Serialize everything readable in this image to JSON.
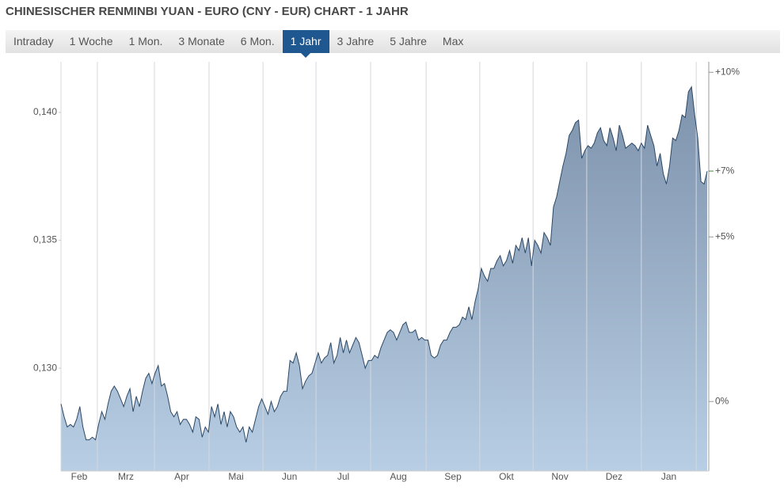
{
  "chart_data": {
    "type": "area",
    "title": "CHINESISCHER RENMINBI YUAN - EURO (CNY - EUR) CHART - 1 JAHR",
    "categories": [
      "Feb",
      "Mrz",
      "Apr",
      "Mai",
      "Jun",
      "Jul",
      "Aug",
      "Sep",
      "Okt",
      "Nov",
      "Dez",
      "Jan"
    ],
    "xticks": [
      0,
      11.6,
      29.8,
      47.2,
      64.4,
      81.3,
      98.7,
      116.4,
      133.5,
      150.5,
      167.6,
      185.0,
      202.5
    ],
    "xlim": [
      0,
      206.5
    ],
    "x": [
      0,
      1,
      2,
      3,
      4,
      5,
      6,
      7,
      8,
      9,
      10,
      11,
      12,
      13,
      14,
      15,
      16,
      17,
      18,
      19,
      20,
      21,
      22,
      23,
      24,
      25,
      26,
      27,
      28,
      29,
      30,
      31,
      32,
      33,
      34,
      35,
      36,
      37,
      38,
      39,
      40,
      41,
      42,
      43,
      44,
      45,
      46,
      47,
      48,
      49,
      50,
      51,
      52,
      53,
      54,
      55,
      56,
      57,
      58,
      59,
      60,
      61,
      62,
      63,
      64,
      65,
      66,
      67,
      68,
      69,
      70,
      71,
      72,
      73,
      74,
      75,
      76,
      77,
      78,
      79,
      80,
      81,
      82,
      83,
      84,
      85,
      86,
      87,
      88,
      89,
      90,
      91,
      92,
      93,
      94,
      95,
      96,
      97,
      98,
      99,
      100,
      101,
      102,
      103,
      104,
      105,
      106,
      107,
      108,
      109,
      110,
      111,
      112,
      113,
      114,
      115,
      116,
      117,
      118,
      119,
      120,
      121,
      122,
      123,
      124,
      125,
      126,
      127,
      128,
      129,
      130,
      131,
      132,
      133,
      134,
      135,
      136,
      137,
      138,
      139,
      140,
      141,
      142,
      143,
      144,
      145,
      146,
      147,
      148,
      149,
      150,
      151,
      152,
      153,
      154,
      155,
      156,
      157,
      158,
      159,
      160,
      161,
      162,
      163,
      164,
      165,
      166,
      167,
      168,
      169,
      170,
      171,
      172,
      173,
      174,
      175,
      176,
      177,
      178,
      179,
      180,
      181,
      182,
      183,
      184,
      185,
      186,
      187,
      188,
      189,
      190,
      191,
      192,
      193,
      194,
      195,
      196,
      197,
      198,
      199,
      200,
      201,
      202,
      203,
      204,
      205,
      206
    ],
    "series": [
      {
        "color": "#2b4866",
        "fill_top": "#7d92ab",
        "fill_bottom": "#b8cee4",
        "values": [
          0.1286,
          0.1281,
          0.1277,
          0.1278,
          0.1277,
          0.128,
          0.1285,
          0.1277,
          0.1272,
          0.1272,
          0.1273,
          0.1272,
          0.1278,
          0.1283,
          0.128,
          0.1286,
          0.1291,
          0.1293,
          0.1291,
          0.1288,
          0.1285,
          0.1289,
          0.1292,
          0.1283,
          0.1289,
          0.1285,
          0.1291,
          0.1296,
          0.1298,
          0.1294,
          0.1298,
          0.1301,
          0.1293,
          0.1294,
          0.1289,
          0.1283,
          0.1281,
          0.1283,
          0.1278,
          0.128,
          0.128,
          0.1278,
          0.1275,
          0.1281,
          0.128,
          0.1273,
          0.1277,
          0.1275,
          0.1285,
          0.1281,
          0.1286,
          0.1278,
          0.1283,
          0.1277,
          0.1283,
          0.1281,
          0.1277,
          0.1275,
          0.1277,
          0.1271,
          0.1277,
          0.1275,
          0.128,
          0.1285,
          0.1288,
          0.1285,
          0.1282,
          0.1287,
          0.1283,
          0.1285,
          0.1289,
          0.1291,
          0.1291,
          0.1303,
          0.1302,
          0.1306,
          0.1301,
          0.1292,
          0.1295,
          0.1297,
          0.1298,
          0.1302,
          0.1306,
          0.1302,
          0.1304,
          0.1305,
          0.131,
          0.1302,
          0.1305,
          0.1312,
          0.1306,
          0.1311,
          0.1306,
          0.1309,
          0.1312,
          0.131,
          0.1305,
          0.13,
          0.1303,
          0.1303,
          0.1305,
          0.1304,
          0.1308,
          0.1311,
          0.1314,
          0.1315,
          0.1314,
          0.1311,
          0.1314,
          0.1317,
          0.1318,
          0.1314,
          0.1314,
          0.1315,
          0.1311,
          0.1312,
          0.1311,
          0.1311,
          0.1305,
          0.1304,
          0.1305,
          0.1309,
          0.1311,
          0.1311,
          0.1314,
          0.1316,
          0.1316,
          0.1317,
          0.132,
          0.1319,
          0.1324,
          0.1319,
          0.1326,
          0.1331,
          0.1339,
          0.1336,
          0.1334,
          0.1339,
          0.1339,
          0.1342,
          0.1344,
          0.134,
          0.1342,
          0.1346,
          0.1341,
          0.1348,
          0.1346,
          0.1351,
          0.1345,
          0.1351,
          0.134,
          0.135,
          0.1348,
          0.1345,
          0.1353,
          0.1351,
          0.1348,
          0.1363,
          0.1367,
          0.1373,
          0.1379,
          0.1384,
          0.1391,
          0.1393,
          0.1396,
          0.1397,
          0.1382,
          0.1385,
          0.1387,
          0.1386,
          0.1388,
          0.1392,
          0.1394,
          0.1389,
          0.1387,
          0.1394,
          0.139,
          0.1385,
          0.1395,
          0.1391,
          0.1386,
          0.1387,
          0.1388,
          0.1387,
          0.1385,
          0.1388,
          0.1386,
          0.1395,
          0.1391,
          0.1387,
          0.1379,
          0.1384,
          0.1376,
          0.1372,
          0.1379,
          0.139,
          0.1389,
          0.1393,
          0.1399,
          0.1398,
          0.1408,
          0.141,
          0.1399,
          0.139,
          0.1373,
          0.1372,
          0.1377
        ]
      }
    ],
    "ylim": [
      0.12598,
      0.14198
    ],
    "yticks": [
      {
        "value": 0.13,
        "label": "0,130"
      },
      {
        "value": 0.135,
        "label": "0,135"
      },
      {
        "value": 0.14,
        "label": "0,140"
      }
    ],
    "y2lim": [
      -2.11,
      10.32
    ],
    "y2ticks": [
      {
        "value": 0,
        "label": "0%"
      },
      {
        "value": 5,
        "label": "+5%"
      },
      {
        "value": 10,
        "label": "+10%"
      }
    ],
    "last_value_label": {
      "value": 7,
      "label": "+7%",
      "color": "#3a8a2c"
    },
    "grid": {
      "x": true,
      "y": false
    }
  },
  "tabs": {
    "items": [
      "Intraday",
      "1 Woche",
      "1 Mon.",
      "3 Monate",
      "6 Mon.",
      "1 Jahr",
      "3 Jahre",
      "5 Jahre",
      "Max"
    ],
    "active": 5
  }
}
